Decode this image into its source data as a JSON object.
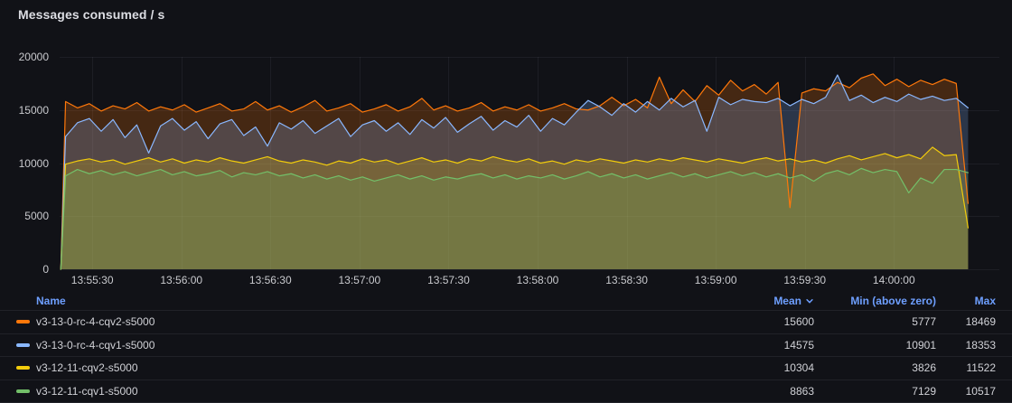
{
  "panel": {
    "title": "Messages consumed / s"
  },
  "colors": {
    "background": "#111217",
    "grid": "rgba(204,204,220,0.07)",
    "axis_text": "#c9cace",
    "link_blue": "#6e9fff",
    "row_text": "#d0d1d6"
  },
  "legend": {
    "columns": [
      "Name",
      "Mean",
      "Min (above zero)",
      "Max"
    ],
    "sort_column": "Mean",
    "sort_direction": "desc"
  },
  "chart_data": {
    "type": "line",
    "title": "Messages consumed / s",
    "ylabel": "",
    "xlabel": "",
    "ylim": [
      0,
      20000
    ],
    "y_ticks": [
      0,
      5000,
      10000,
      15000,
      20000
    ],
    "x_range_seconds": [
      0,
      308
    ],
    "x_ticks": [
      {
        "t": 11,
        "label": "13:55:30"
      },
      {
        "t": 41,
        "label": "13:56:00"
      },
      {
        "t": 71,
        "label": "13:56:30"
      },
      {
        "t": 101,
        "label": "13:57:00"
      },
      {
        "t": 131,
        "label": "13:57:30"
      },
      {
        "t": 161,
        "label": "13:58:00"
      },
      {
        "t": 191,
        "label": "13:58:30"
      },
      {
        "t": 221,
        "label": "13:59:00"
      },
      {
        "t": 251,
        "label": "13:59:30"
      },
      {
        "t": 281,
        "label": "14:00:00"
      }
    ],
    "grid": true,
    "legend_position": "bottom-table",
    "fill_opacity": 0.22,
    "line_width": 1.2,
    "series": [
      {
        "name": "v3-13-0-rc-4-cqv2-s5000",
        "color": "#FF780A",
        "mean": 15600,
        "min_above_zero": 5777,
        "max": 18469,
        "t0": 2,
        "dt": 4,
        "rise_from_zero": true,
        "values": [
          15800,
          15200,
          15600,
          14900,
          15400,
          15100,
          15700,
          14900,
          15300,
          15000,
          15500,
          14800,
          15200,
          15600,
          14900,
          15100,
          15800,
          15000,
          15400,
          14800,
          15300,
          15900,
          14900,
          15200,
          15600,
          14800,
          15100,
          15500,
          14900,
          15300,
          16100,
          15000,
          15400,
          14900,
          15200,
          15700,
          14900,
          15300,
          15000,
          15500,
          14900,
          15200,
          15600,
          15100,
          15000,
          15400,
          16200,
          15400,
          16000,
          15200,
          18100,
          15600,
          16900,
          15800,
          17300,
          16400,
          17800,
          16800,
          17400,
          16500,
          17600,
          5800,
          16600,
          17000,
          16800,
          17600,
          17100,
          18000,
          18400,
          17300,
          17900,
          17200,
          17800,
          17400,
          17900,
          17500,
          6200
        ]
      },
      {
        "name": "v3-13-0-rc-4-cqv1-s5000",
        "color": "#8AB8FF",
        "mean": 14575,
        "min_above_zero": 10901,
        "max": 18353,
        "t0": 2,
        "dt": 4,
        "rise_from_zero": true,
        "values": [
          12500,
          13800,
          14200,
          13000,
          14100,
          12400,
          13600,
          10950,
          13500,
          14200,
          13100,
          13900,
          12300,
          13700,
          14100,
          12600,
          13400,
          11600,
          13800,
          13200,
          14000,
          12800,
          13500,
          14200,
          12500,
          13600,
          14000,
          13000,
          13800,
          12700,
          14100,
          13300,
          14300,
          12900,
          13700,
          14400,
          13100,
          14000,
          13400,
          14500,
          13000,
          14200,
          13600,
          14800,
          15900,
          15300,
          14500,
          15600,
          14800,
          15800,
          15000,
          16100,
          15300,
          15900,
          13000,
          16200,
          15500,
          16000,
          15800,
          15700,
          16100,
          15400,
          16000,
          15600,
          16200,
          18300,
          15900,
          16400,
          15700,
          16200,
          15800,
          16500,
          16000,
          16300,
          15900,
          16100,
          15200
        ]
      },
      {
        "name": "v3-12-11-cqv2-s5000",
        "color": "#F2CC0C",
        "mean": 10304,
        "min_above_zero": 3826,
        "max": 11522,
        "t0": 2,
        "dt": 4,
        "rise_from_zero": true,
        "values": [
          9900,
          10200,
          10400,
          10100,
          10300,
          9900,
          10200,
          10500,
          10100,
          10400,
          10000,
          10300,
          10100,
          10500,
          10200,
          10000,
          10300,
          10600,
          10200,
          10000,
          10300,
          10100,
          9800,
          10200,
          10000,
          10400,
          10100,
          10300,
          9900,
          10200,
          10500,
          10100,
          10300,
          10000,
          10400,
          10200,
          10600,
          10300,
          10100,
          10400,
          10000,
          10200,
          9900,
          10300,
          10100,
          10400,
          10200,
          10000,
          10300,
          10100,
          10400,
          10200,
          10500,
          10300,
          10100,
          10400,
          10200,
          10000,
          10300,
          10500,
          10200,
          10400,
          10100,
          10300,
          10000,
          10400,
          10700,
          10300,
          10600,
          10900,
          10500,
          10800,
          10400,
          11500,
          10700,
          10800,
          3900
        ]
      },
      {
        "name": "v3-12-11-cqv1-s5000",
        "color": "#73BF69",
        "mean": 8863,
        "min_above_zero": 7129,
        "max": 10517,
        "t0": 2,
        "dt": 4,
        "rise_from_zero": true,
        "values": [
          8800,
          9400,
          9000,
          9300,
          8900,
          9200,
          8800,
          9100,
          9400,
          8900,
          9200,
          8800,
          9000,
          9300,
          8700,
          9100,
          8900,
          9200,
          8800,
          9000,
          8600,
          8900,
          8500,
          8800,
          8400,
          8700,
          8300,
          8600,
          8900,
          8500,
          8800,
          8400,
          8700,
          8500,
          8800,
          9000,
          8600,
          8900,
          8500,
          8800,
          8600,
          8900,
          8500,
          8800,
          9200,
          8700,
          9000,
          8600,
          8900,
          8500,
          8800,
          9100,
          8700,
          9000,
          8600,
          8900,
          9200,
          8800,
          9100,
          8700,
          9000,
          8600,
          8900,
          8300,
          9000,
          9300,
          8900,
          9500,
          9100,
          9400,
          9200,
          7200,
          8600,
          8100,
          9400,
          9400,
          9100
        ]
      }
    ]
  }
}
